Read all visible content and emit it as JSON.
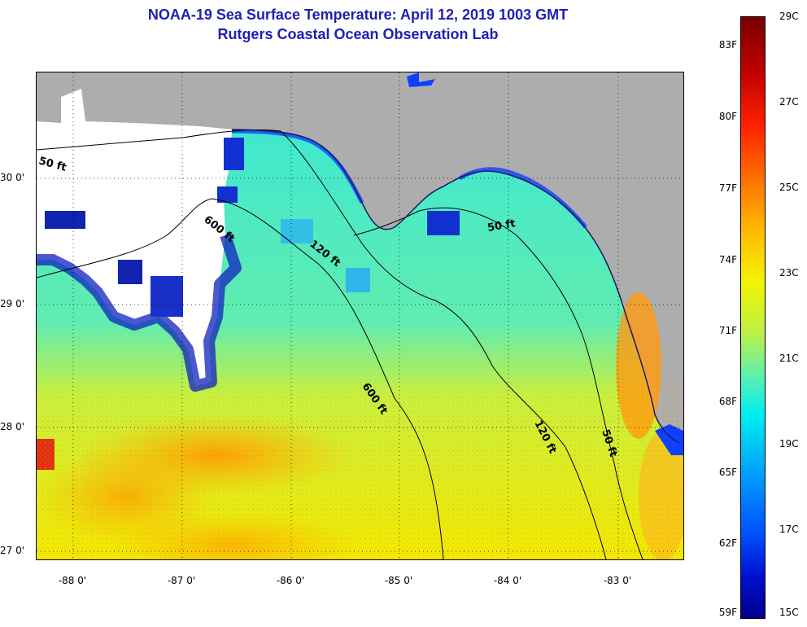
{
  "header": {
    "title": "NOAA-19 Sea Surface Temperature:  April 12, 2019 1003 GMT",
    "subtitle": "Rutgers Coastal Ocean Observation Lab"
  },
  "map": {
    "land_color": "#adadad",
    "cloud_color": "#ffffff",
    "contour_labels": [
      "50 ft",
      "600 ft",
      "120 ft",
      "50 ft",
      "600 ft",
      "120 ft",
      "50 ft"
    ],
    "longitude_labels": [
      "-88 0'",
      "-87 0'",
      "-86 0'",
      "-85 0'",
      "-84 0'",
      "-83 0'"
    ],
    "latitude_labels": [
      "30 0'",
      "29 0'",
      "28 0'",
      "27 0'"
    ]
  },
  "colorbar": {
    "fahrenheit_labels": [
      "83F",
      "80F",
      "77F",
      "74F",
      "71F",
      "68F",
      "65F",
      "62F",
      "59F"
    ],
    "celsius_labels": [
      "29C",
      "27C",
      "25C",
      "23C",
      "21C",
      "19C",
      "17C",
      "15C"
    ],
    "colors": [
      "#7a0000",
      "#ff2000",
      "#ffbe00",
      "#f3f300",
      "#5af0b0",
      "#00f0f0",
      "#0090ff",
      "#00008a"
    ]
  }
}
